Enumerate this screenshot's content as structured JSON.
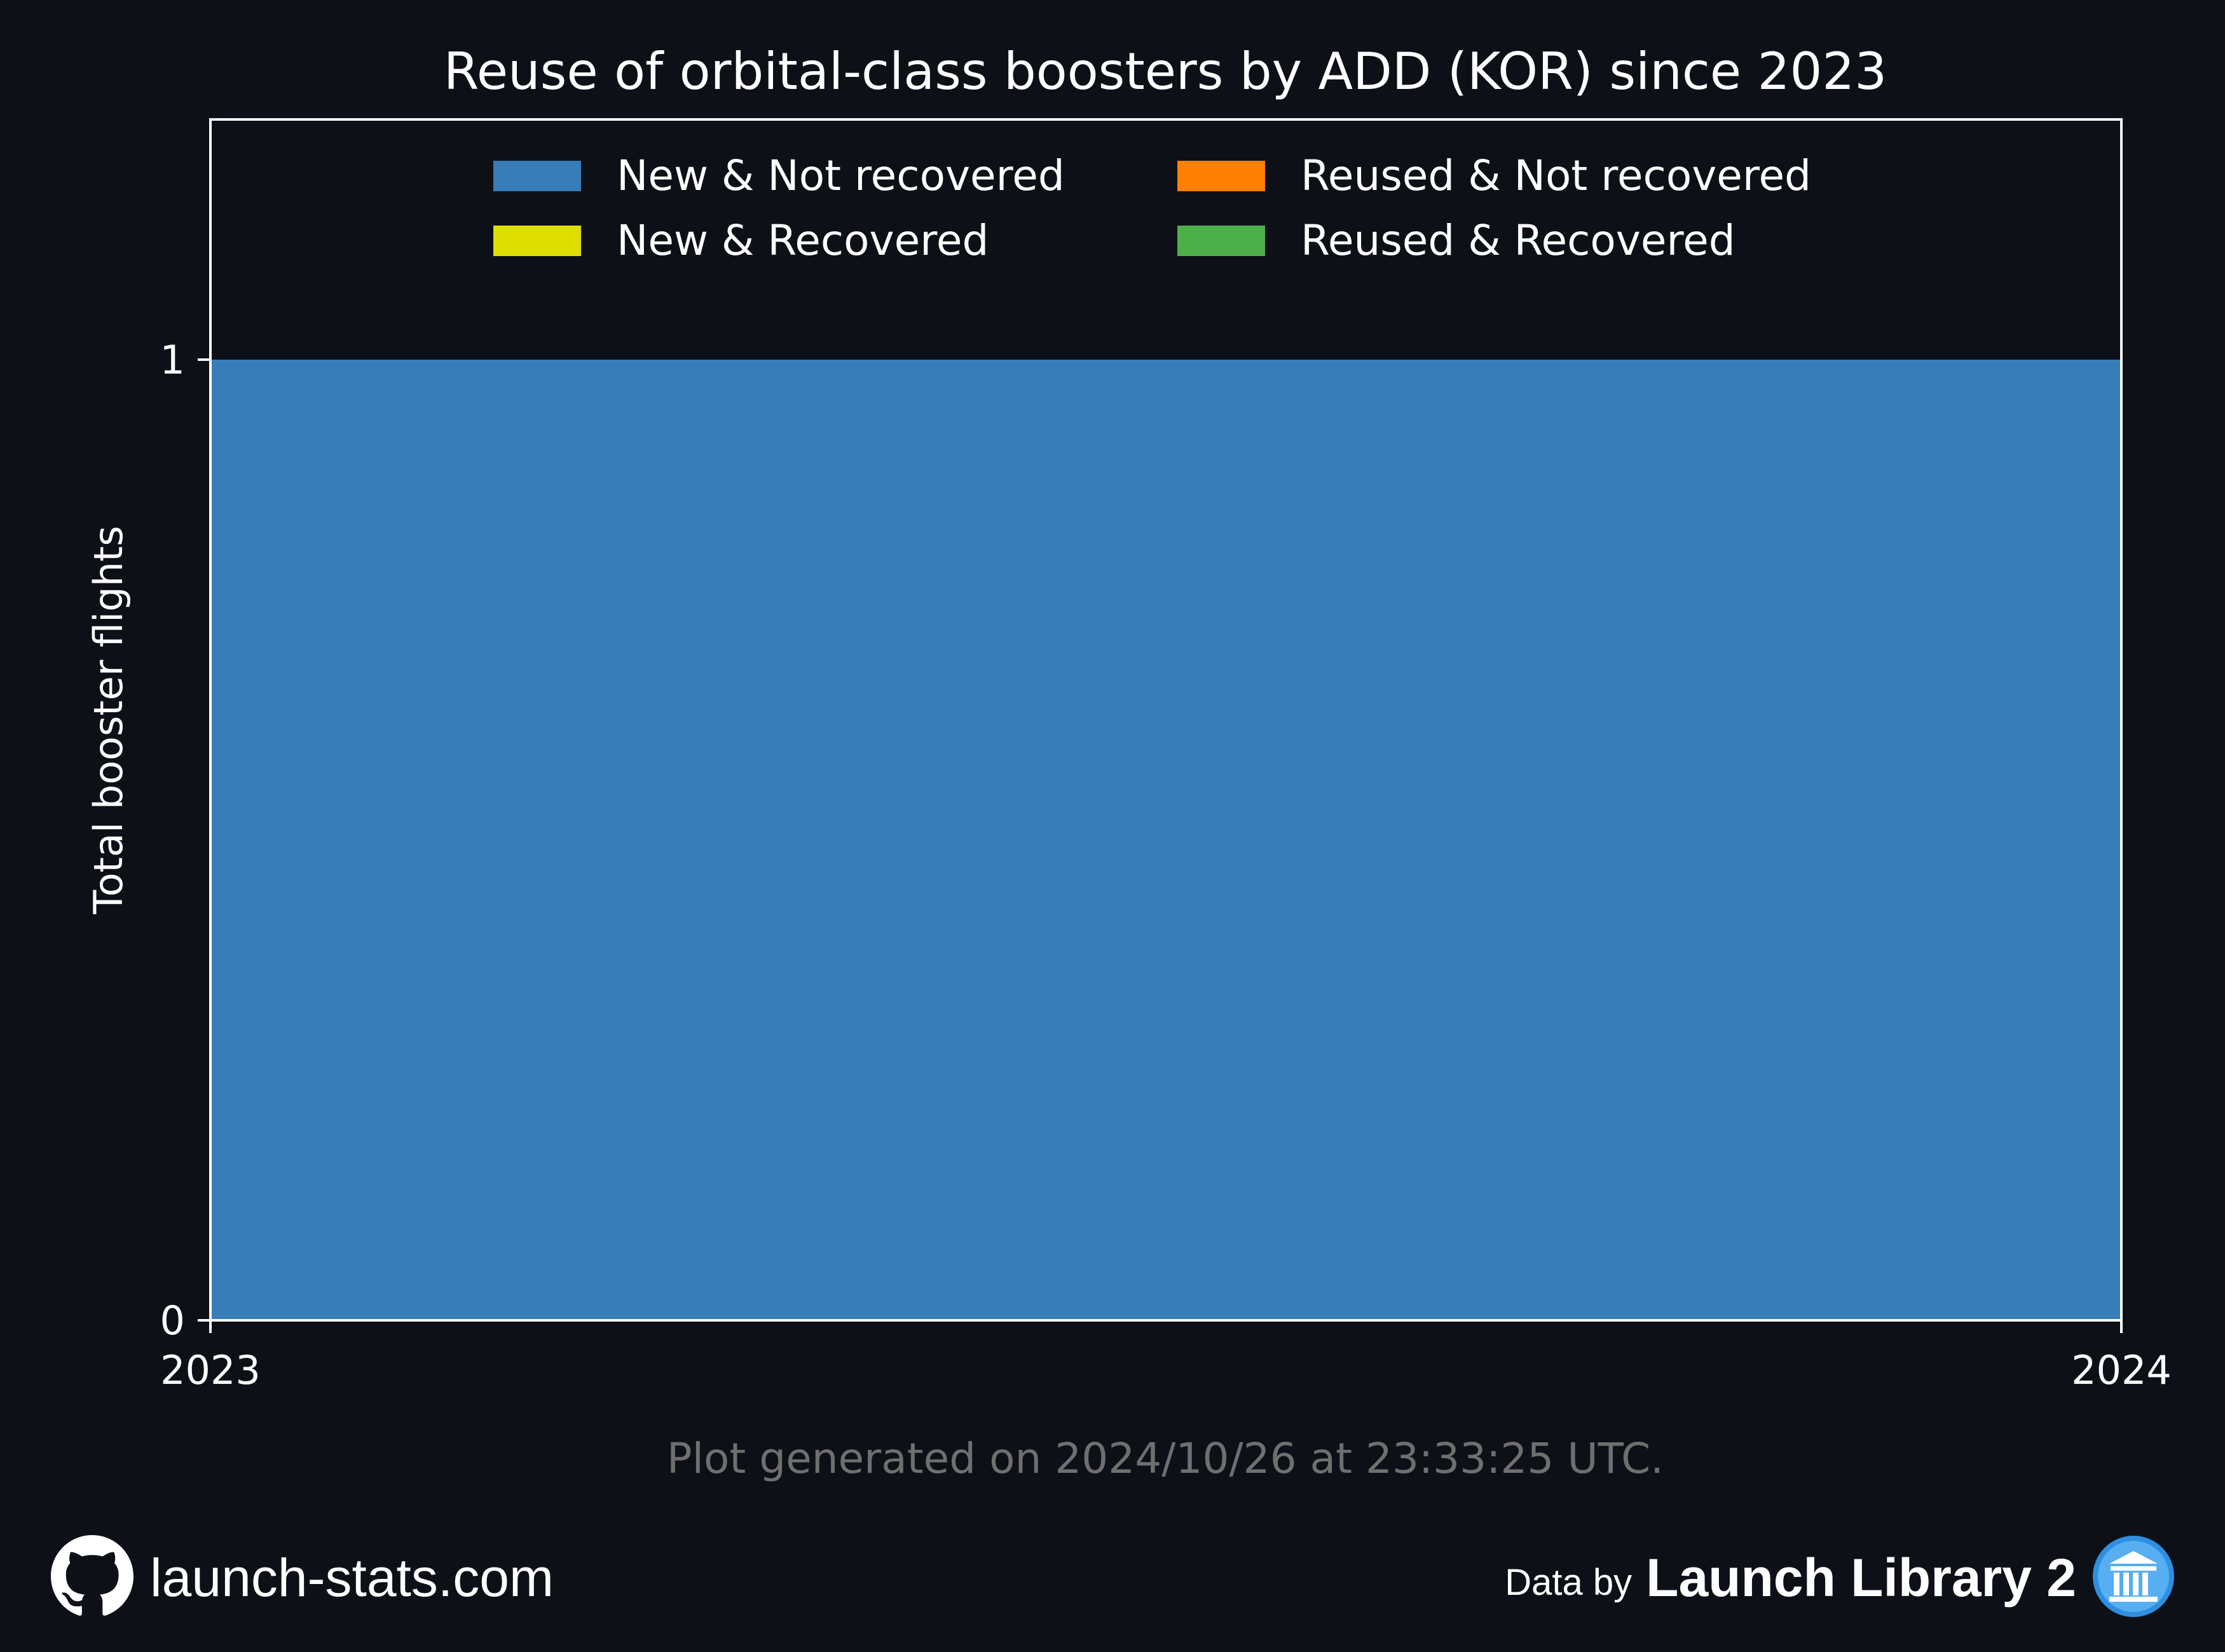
{
  "chart_data": {
    "type": "area",
    "title": "Reuse of orbital-class boosters by ADD (KOR) since 2023",
    "xlabel": "",
    "ylabel": "Total booster flights",
    "x": [
      2023,
      2024
    ],
    "x_ticks": [
      "2023",
      "2024"
    ],
    "y_ticks": [
      "0",
      "1"
    ],
    "xlim": [
      2023,
      2024
    ],
    "ylim": [
      0,
      1.25
    ],
    "stacked": true,
    "grid": false,
    "legend_position": "top-center",
    "series": [
      {
        "name": "New & Not recovered",
        "color": "#377eb8",
        "values": [
          1,
          1
        ]
      },
      {
        "name": "New & Recovered",
        "color": "#dede00",
        "values": [
          0,
          0
        ]
      },
      {
        "name": "Reused & Not recovered",
        "color": "#ff7f00",
        "values": [
          0,
          0
        ]
      },
      {
        "name": "Reused & Recovered",
        "color": "#4daf4a",
        "values": [
          0,
          0
        ]
      }
    ]
  },
  "footnote": "Plot generated on 2024/10/26 at 23:33:25 UTC.",
  "footer": {
    "site": "launch-stats.com",
    "data_by": "Data by",
    "source": "Launch Library 2",
    "github_icon": "github-icon",
    "library_icon": "library-icon"
  },
  "colors": {
    "background": "#0d1017",
    "axes": "#ffffff",
    "footnote": "#6f6f6f"
  }
}
